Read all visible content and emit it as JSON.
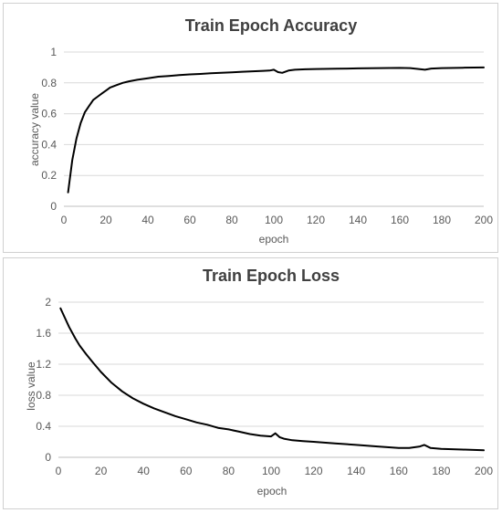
{
  "chart_data": [
    {
      "type": "line",
      "title": "Train Epoch Accuracy",
      "xlabel": "epoch",
      "ylabel": "accuracy  value",
      "xlim": [
        0,
        200
      ],
      "ylim": [
        0,
        1
      ],
      "x_ticks": [
        0,
        20,
        40,
        60,
        80,
        100,
        120,
        140,
        160,
        180,
        200
      ],
      "y_ticks": [
        0,
        0.2,
        0.4,
        0.6,
        0.8,
        1
      ],
      "y_tick_labels": [
        "0",
        "0.2",
        "0.4",
        "0.6",
        "0.8",
        "1"
      ],
      "grid": true,
      "legend": "none",
      "series": [
        {
          "color": "#000000",
          "x": [
            2,
            4,
            6,
            8,
            10,
            12,
            14,
            16,
            18,
            20,
            22,
            25,
            28,
            31,
            35,
            40,
            45,
            50,
            55,
            60,
            65,
            70,
            75,
            80,
            85,
            90,
            95,
            98,
            100,
            102,
            104,
            107,
            110,
            115,
            120,
            130,
            140,
            150,
            160,
            165,
            170,
            172,
            175,
            180,
            190,
            200
          ],
          "y": [
            0.09,
            0.3,
            0.44,
            0.54,
            0.61,
            0.65,
            0.69,
            0.71,
            0.73,
            0.75,
            0.77,
            0.785,
            0.8,
            0.81,
            0.82,
            0.83,
            0.84,
            0.845,
            0.85,
            0.855,
            0.858,
            0.862,
            0.865,
            0.868,
            0.872,
            0.875,
            0.878,
            0.88,
            0.885,
            0.87,
            0.865,
            0.88,
            0.885,
            0.888,
            0.89,
            0.892,
            0.894,
            0.896,
            0.897,
            0.896,
            0.888,
            0.885,
            0.893,
            0.896,
            0.898,
            0.9
          ]
        }
      ]
    },
    {
      "type": "line",
      "title": "Train Epoch Loss",
      "xlabel": "epoch",
      "ylabel": "loss  value",
      "xlim": [
        0,
        200
      ],
      "ylim": [
        0,
        2
      ],
      "x_ticks": [
        0,
        20,
        40,
        60,
        80,
        100,
        120,
        140,
        160,
        180,
        200
      ],
      "y_ticks": [
        0,
        0.4,
        0.8,
        1.2,
        1.6,
        2
      ],
      "y_tick_labels": [
        "0",
        "0.4",
        "0.8",
        "1.2",
        "1.6",
        "2"
      ],
      "grid": true,
      "legend": "none",
      "series": [
        {
          "color": "#000000",
          "x": [
            1,
            3,
            5,
            8,
            10,
            13,
            16,
            20,
            25,
            30,
            35,
            40,
            45,
            50,
            55,
            60,
            65,
            70,
            75,
            80,
            85,
            90,
            95,
            100,
            102,
            104,
            106,
            110,
            115,
            120,
            130,
            140,
            150,
            160,
            165,
            170,
            172,
            175,
            180,
            190,
            200
          ],
          "y": [
            1.92,
            1.8,
            1.68,
            1.53,
            1.44,
            1.33,
            1.23,
            1.1,
            0.96,
            0.85,
            0.76,
            0.69,
            0.63,
            0.58,
            0.53,
            0.49,
            0.45,
            0.42,
            0.38,
            0.36,
            0.33,
            0.3,
            0.28,
            0.27,
            0.31,
            0.26,
            0.24,
            0.22,
            0.21,
            0.2,
            0.18,
            0.16,
            0.14,
            0.12,
            0.12,
            0.14,
            0.16,
            0.12,
            0.11,
            0.1,
            0.09
          ]
        }
      ]
    }
  ]
}
